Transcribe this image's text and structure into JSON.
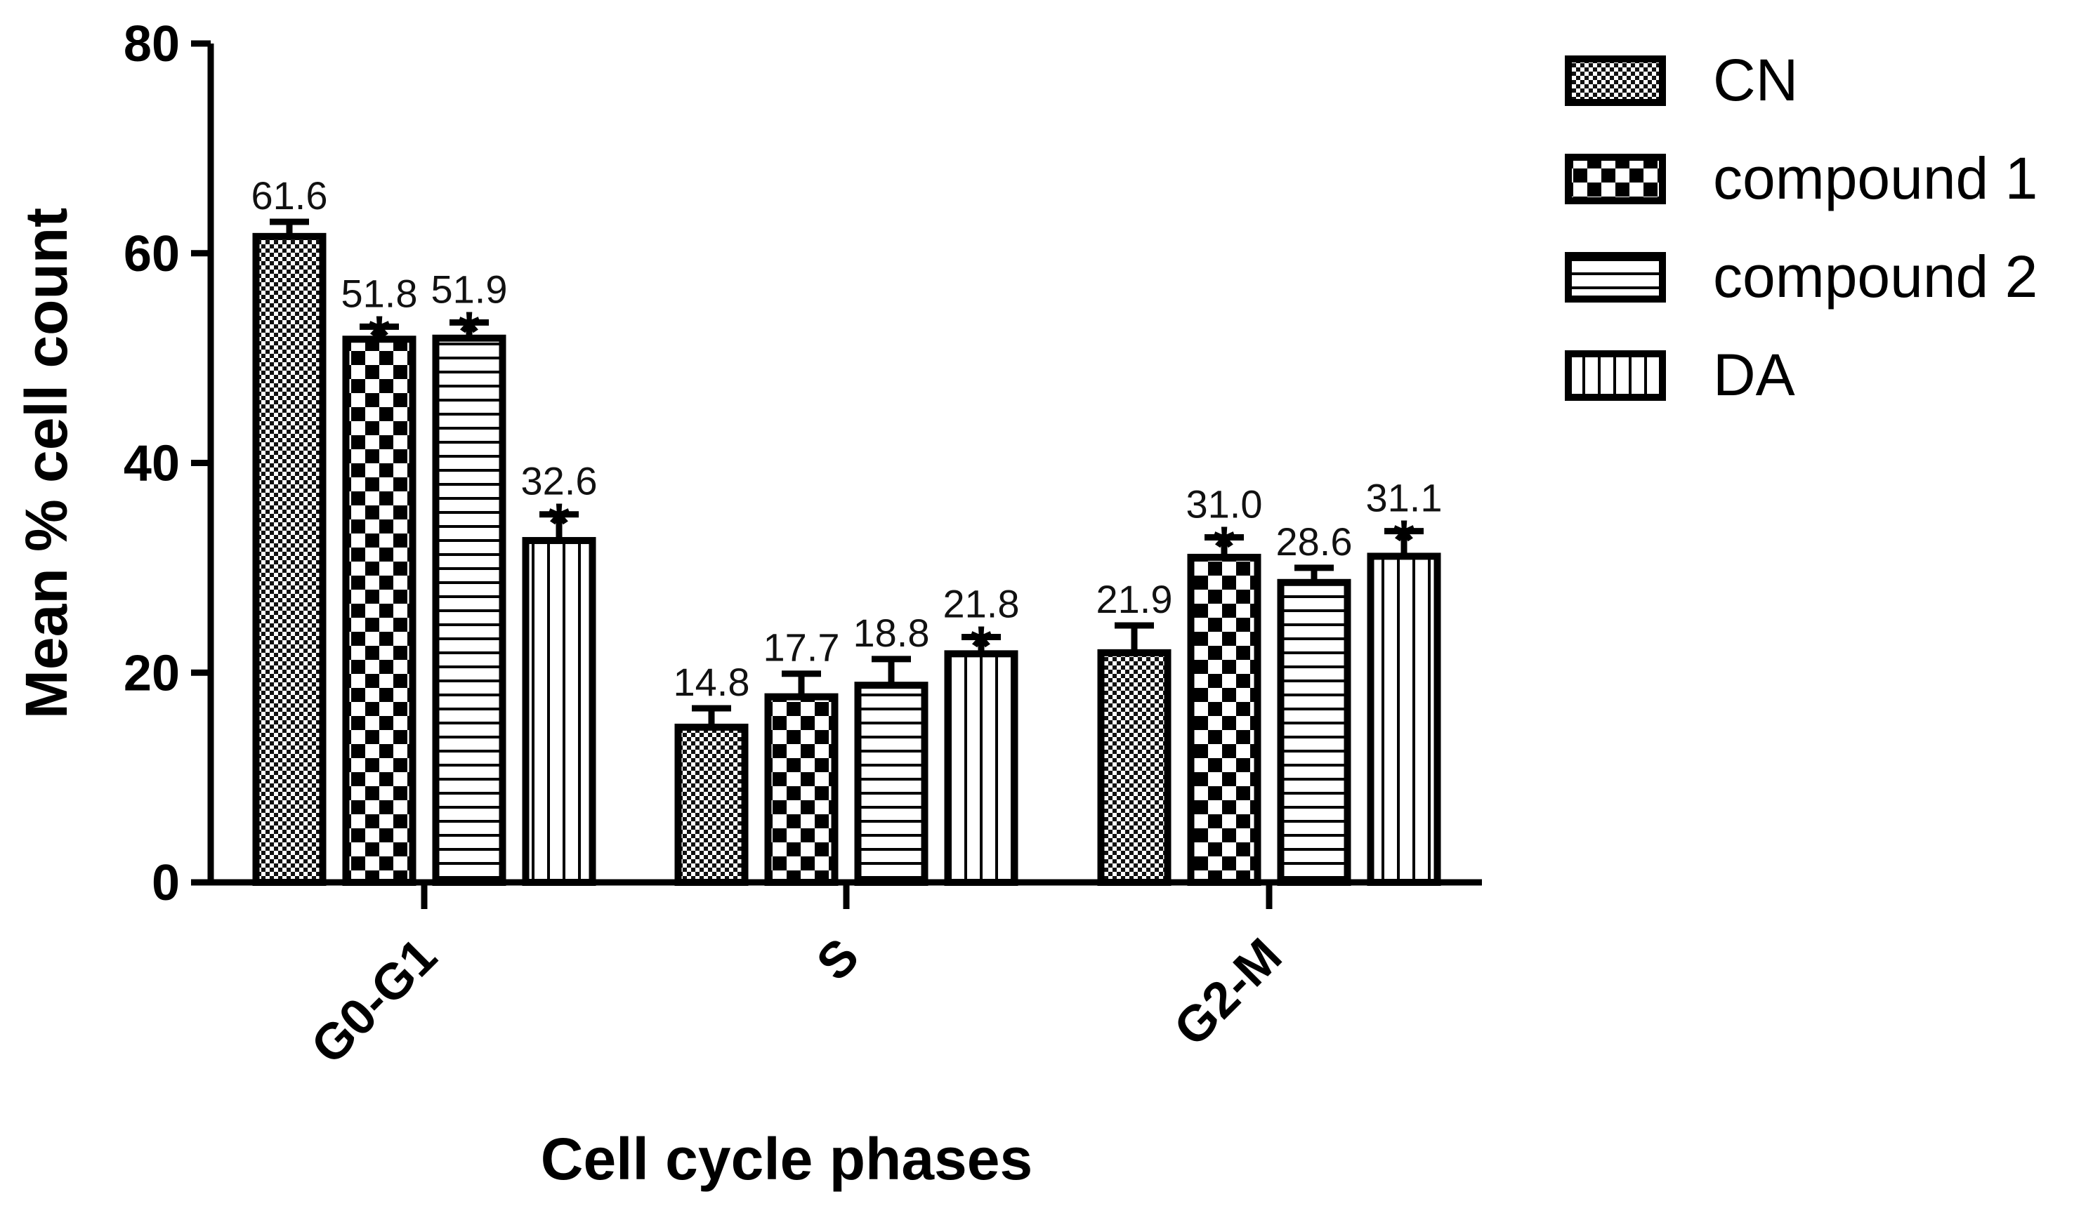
{
  "chart_data": {
    "type": "bar",
    "title": "",
    "xlabel": "Cell cycle phases",
    "ylabel": "Mean % cell count",
    "ylim": [
      0,
      80
    ],
    "yticks": [
      "0",
      "20",
      "40",
      "60",
      "80"
    ],
    "categories": [
      "G0-G1",
      "S",
      "G2-M"
    ],
    "series": [
      {
        "name": "CN",
        "pattern": "fine-checker",
        "values": [
          61.6,
          14.8,
          21.9
        ],
        "errors": [
          1.4,
          1.8,
          2.6
        ],
        "labels": [
          "61.6",
          "14.8",
          "21.9"
        ],
        "significant": [
          false,
          false,
          false
        ]
      },
      {
        "name": "compound 1",
        "pattern": "checker",
        "values": [
          51.8,
          17.7,
          31.0
        ],
        "errors": [
          1.2,
          2.2,
          1.9
        ],
        "labels": [
          "51.8",
          "17.7",
          "31.0"
        ],
        "significant": [
          true,
          false,
          true
        ]
      },
      {
        "name": "compound 2",
        "pattern": "horizontal-lines",
        "values": [
          51.9,
          18.8,
          28.6
        ],
        "errors": [
          1.5,
          2.5,
          1.4
        ],
        "labels": [
          "51.9",
          "18.8",
          "28.6"
        ],
        "significant": [
          true,
          false,
          false
        ]
      },
      {
        "name": "DA",
        "pattern": "vertical-lines",
        "values": [
          32.6,
          21.8,
          31.1
        ],
        "errors": [
          2.5,
          1.6,
          2.4
        ],
        "labels": [
          "32.6",
          "21.8",
          "31.1"
        ],
        "significant": [
          true,
          true,
          true
        ]
      }
    ],
    "significance_marker": "*",
    "legend_position": "top-right"
  }
}
